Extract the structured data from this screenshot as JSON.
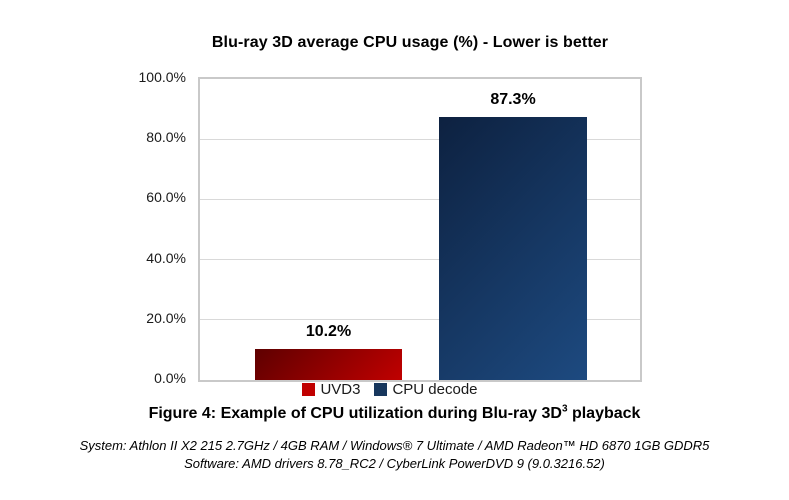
{
  "chart_data": {
    "type": "bar",
    "title": "Blu-ray 3D average CPU usage (%) - Lower is better",
    "categories": [
      "UVD3",
      "CPU decode"
    ],
    "values": [
      10.2,
      87.3
    ],
    "series": [
      {
        "name": "UVD3",
        "value": 10.2,
        "value_label": "10.2%",
        "gradient_start": "#5e0000",
        "gradient_end": "#c00000",
        "legend_color": "#c00000"
      },
      {
        "name": "CPU decode",
        "value": 87.3,
        "value_label": "87.3%",
        "gradient_start": "#0d2140",
        "gradient_end": "#1d4a80",
        "legend_color": "#17375d"
      }
    ],
    "xlabel": "",
    "ylabel": "",
    "ylim": [
      0,
      100
    ],
    "y_ticks": [
      "100.0%",
      "80.0%",
      "60.0%",
      "40.0%",
      "20.0%",
      "0.0%"
    ],
    "grid": true,
    "legend_position": "bottom",
    "plot_border_color": "#c9c9c9",
    "gridline_color": "#d9d9d9"
  },
  "caption": {
    "prefix": "Figure 4: Example of CPU utilization during Blu-ray 3D",
    "superscript": "3",
    "suffix": " playback"
  },
  "footnotes": {
    "system": "System: Athlon II X2 215 2.7GHz / 4GB RAM / Windows® 7 Ultimate / AMD Radeon™ HD 6870 1GB GDDR5",
    "software": "Software: AMD drivers 8.78_RC2 / CyberLink PowerDVD 9 (9.0.3216.52)"
  }
}
